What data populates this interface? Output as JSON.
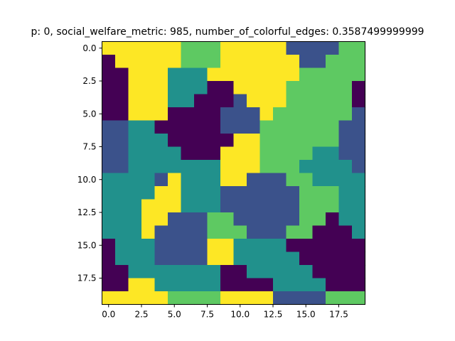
{
  "chart_data": {
    "type": "heatmap",
    "title": "p: 0, social_welfare_metric: 985, number_of_colorful_edges: 0.3587499999999",
    "xlabel": "",
    "ylabel": "",
    "x_ticks": [
      "0.0",
      "2.5",
      "5.0",
      "7.5",
      "10.0",
      "12.5",
      "15.0",
      "17.5"
    ],
    "y_ticks": [
      "0.0",
      "2.5",
      "5.0",
      "7.5",
      "10.0",
      "12.5",
      "15.0",
      "17.5"
    ],
    "xlim": [
      -0.5,
      19.5
    ],
    "ylim": [
      19.5,
      -0.5
    ],
    "colormap": "viridis",
    "palette": [
      "#440154",
      "#3b528b",
      "#21918c",
      "#5ec962",
      "#fde725"
    ],
    "grid": false,
    "legend": "none",
    "values": [
      [
        4,
        4,
        4,
        4,
        4,
        4,
        3,
        3,
        3,
        4,
        4,
        4,
        4,
        4,
        1,
        1,
        1,
        1,
        3,
        3
      ],
      [
        0,
        4,
        4,
        4,
        4,
        4,
        3,
        3,
        3,
        4,
        4,
        4,
        4,
        4,
        4,
        1,
        1,
        3,
        3,
        3
      ],
      [
        0,
        0,
        4,
        4,
        4,
        2,
        2,
        2,
        4,
        4,
        4,
        4,
        4,
        4,
        4,
        3,
        3,
        3,
        3,
        3
      ],
      [
        0,
        0,
        4,
        4,
        4,
        2,
        2,
        2,
        0,
        0,
        4,
        4,
        4,
        4,
        3,
        3,
        3,
        3,
        3,
        0
      ],
      [
        0,
        0,
        4,
        4,
        4,
        2,
        2,
        0,
        0,
        0,
        1,
        4,
        4,
        4,
        3,
        3,
        3,
        3,
        3,
        0
      ],
      [
        0,
        0,
        4,
        4,
        4,
        0,
        0,
        0,
        0,
        1,
        1,
        1,
        4,
        3,
        3,
        3,
        3,
        3,
        3,
        1
      ],
      [
        1,
        1,
        2,
        2,
        0,
        0,
        0,
        0,
        0,
        1,
        1,
        1,
        3,
        3,
        3,
        3,
        3,
        3,
        1,
        1
      ],
      [
        1,
        1,
        2,
        2,
        2,
        0,
        0,
        0,
        0,
        0,
        4,
        4,
        3,
        3,
        3,
        3,
        3,
        3,
        1,
        1
      ],
      [
        1,
        1,
        2,
        2,
        2,
        2,
        0,
        0,
        0,
        4,
        4,
        4,
        3,
        3,
        3,
        3,
        2,
        2,
        1,
        1
      ],
      [
        1,
        1,
        2,
        2,
        2,
        2,
        2,
        2,
        2,
        4,
        4,
        4,
        3,
        3,
        3,
        2,
        2,
        2,
        2,
        1
      ],
      [
        2,
        2,
        2,
        2,
        1,
        4,
        2,
        2,
        2,
        4,
        4,
        1,
        1,
        1,
        3,
        3,
        2,
        2,
        2,
        2
      ],
      [
        2,
        2,
        2,
        2,
        4,
        4,
        2,
        2,
        2,
        1,
        1,
        1,
        1,
        1,
        1,
        3,
        3,
        3,
        2,
        2
      ],
      [
        2,
        2,
        2,
        4,
        4,
        4,
        2,
        2,
        2,
        1,
        1,
        1,
        1,
        1,
        1,
        3,
        3,
        3,
        2,
        2
      ],
      [
        2,
        2,
        2,
        4,
        4,
        1,
        1,
        1,
        3,
        3,
        1,
        1,
        1,
        1,
        1,
        3,
        3,
        0,
        2,
        2
      ],
      [
        2,
        2,
        2,
        4,
        1,
        1,
        1,
        1,
        3,
        3,
        3,
        1,
        1,
        1,
        3,
        3,
        0,
        0,
        0,
        2
      ],
      [
        0,
        2,
        2,
        2,
        1,
        1,
        1,
        1,
        4,
        4,
        2,
        2,
        2,
        2,
        0,
        0,
        0,
        0,
        0,
        0
      ],
      [
        0,
        2,
        2,
        2,
        1,
        1,
        1,
        1,
        4,
        4,
        2,
        2,
        2,
        2,
        2,
        0,
        0,
        0,
        0,
        0
      ],
      [
        0,
        0,
        2,
        2,
        2,
        2,
        2,
        2,
        2,
        0,
        0,
        2,
        2,
        2,
        2,
        2,
        0,
        0,
        0,
        0
      ],
      [
        0,
        0,
        4,
        4,
        2,
        2,
        2,
        2,
        2,
        0,
        0,
        0,
        0,
        2,
        2,
        2,
        2,
        0,
        0,
        0
      ],
      [
        4,
        4,
        4,
        4,
        4,
        3,
        3,
        3,
        3,
        4,
        4,
        4,
        4,
        1,
        1,
        1,
        1,
        3,
        3,
        3
      ]
    ]
  }
}
